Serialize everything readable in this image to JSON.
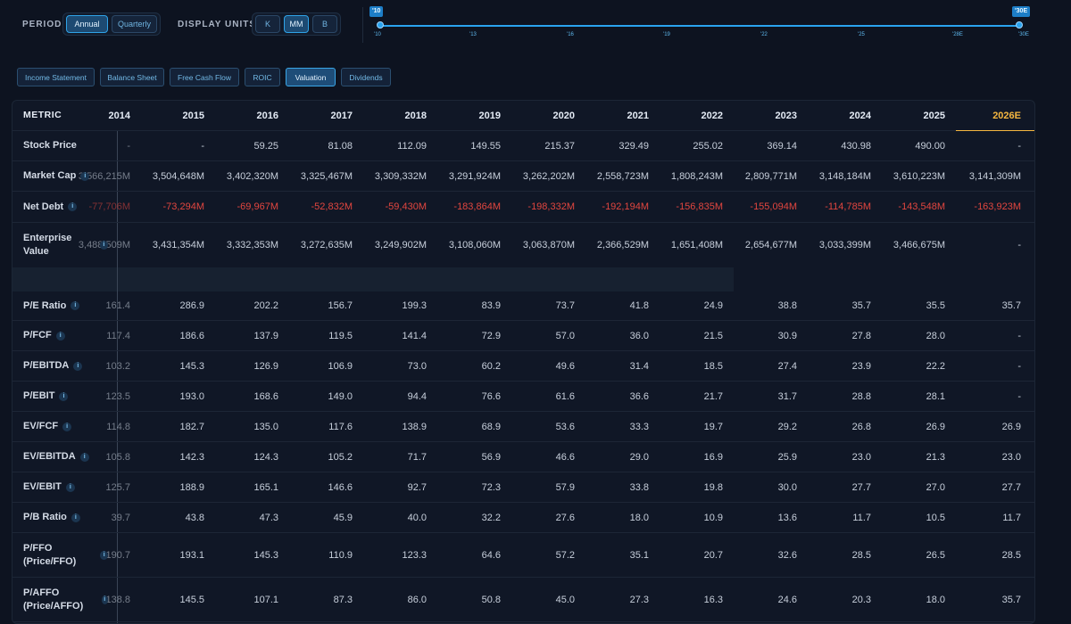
{
  "controls": {
    "period_label": "PERIOD",
    "period_options": [
      "Annual",
      "Quarterly"
    ],
    "display_units_label": "DISPLAY UNITS",
    "unit_options": [
      "K",
      "MM",
      "B"
    ]
  },
  "timeline": {
    "start_flag": "'10",
    "end_flag": "'30E",
    "ticks": [
      "'10",
      "'13",
      "'16",
      "'19",
      "'22",
      "'25",
      "'28E",
      "'30E"
    ]
  },
  "tabs": [
    "Income Statement",
    "Balance Sheet",
    "Free Cash Flow",
    "ROIC",
    "Valuation",
    "Dividends"
  ],
  "table": {
    "metric_header": "METRIC",
    "years": [
      "2014",
      "2015",
      "2016",
      "2017",
      "2018",
      "2019",
      "2020",
      "2021",
      "2022",
      "2023",
      "2024",
      "2025",
      "2026E"
    ],
    "rows": [
      {
        "label": "Stock Price",
        "info": false,
        "values": [
          "-",
          "-",
          "59.25",
          "81.08",
          "112.09",
          "149.55",
          "215.37",
          "329.49",
          "255.02",
          "369.14",
          "430.98",
          "490.00",
          "-"
        ]
      },
      {
        "label": "Market Cap",
        "info": true,
        "values": [
          "3,566,215M",
          "3,504,648M",
          "3,402,320M",
          "3,325,467M",
          "3,309,332M",
          "3,291,924M",
          "3,262,202M",
          "2,558,723M",
          "1,808,243M",
          "2,809,771M",
          "3,148,184M",
          "3,610,223M",
          "3,141,309M"
        ]
      },
      {
        "label": "Net Debt",
        "info": true,
        "neg": true,
        "values": [
          "-77,706M",
          "-73,294M",
          "-69,967M",
          "-52,832M",
          "-59,430M",
          "-183,864M",
          "-198,332M",
          "-192,194M",
          "-156,835M",
          "-155,094M",
          "-114,785M",
          "-143,548M",
          "-163,923M"
        ]
      },
      {
        "label": "Enterprise Value",
        "info": true,
        "values": [
          "3,488,509M",
          "3,431,354M",
          "3,332,353M",
          "3,272,635M",
          "3,249,902M",
          "3,108,060M",
          "3,063,870M",
          "2,366,529M",
          "1,651,408M",
          "2,654,677M",
          "3,033,399M",
          "3,466,675M",
          "-"
        ]
      },
      {
        "label": "P/E Ratio",
        "info": true,
        "values": [
          "161.4",
          "286.9",
          "202.2",
          "156.7",
          "199.3",
          "83.9",
          "73.7",
          "41.8",
          "24.9",
          "38.8",
          "35.7",
          "35.5",
          "35.7"
        ]
      },
      {
        "label": "P/FCF",
        "info": true,
        "values": [
          "117.4",
          "186.6",
          "137.9",
          "119.5",
          "141.4",
          "72.9",
          "57.0",
          "36.0",
          "21.5",
          "30.9",
          "27.8",
          "28.0",
          "-"
        ]
      },
      {
        "label": "P/EBITDA",
        "info": true,
        "values": [
          "103.2",
          "145.3",
          "126.9",
          "106.9",
          "73.0",
          "60.2",
          "49.6",
          "31.4",
          "18.5",
          "27.4",
          "23.9",
          "22.2",
          "-"
        ]
      },
      {
        "label": "P/EBIT",
        "info": true,
        "values": [
          "123.5",
          "193.0",
          "168.6",
          "149.0",
          "94.4",
          "76.6",
          "61.6",
          "36.6",
          "21.7",
          "31.7",
          "28.8",
          "28.1",
          "-"
        ]
      },
      {
        "label": "EV/FCF",
        "info": true,
        "values": [
          "114.8",
          "182.7",
          "135.0",
          "117.6",
          "138.9",
          "68.9",
          "53.6",
          "33.3",
          "19.7",
          "29.2",
          "26.8",
          "26.9",
          "26.9"
        ]
      },
      {
        "label": "EV/EBITDA",
        "info": true,
        "values": [
          "105.8",
          "142.3",
          "124.3",
          "105.2",
          "71.7",
          "56.9",
          "46.6",
          "29.0",
          "16.9",
          "25.9",
          "23.0",
          "21.3",
          "23.0"
        ]
      },
      {
        "label": "EV/EBIT",
        "info": true,
        "values": [
          "125.7",
          "188.9",
          "165.1",
          "146.6",
          "92.7",
          "72.3",
          "57.9",
          "33.8",
          "19.8",
          "30.0",
          "27.7",
          "27.0",
          "27.7"
        ]
      },
      {
        "label": "P/B Ratio",
        "info": true,
        "values": [
          "39.7",
          "43.8",
          "47.3",
          "45.9",
          "40.0",
          "32.2",
          "27.6",
          "18.0",
          "10.9",
          "13.6",
          "11.7",
          "10.5",
          "11.7"
        ]
      },
      {
        "label": "P/FFO (Price/FFO)",
        "info": true,
        "values": [
          "190.7",
          "193.1",
          "145.3",
          "110.9",
          "123.3",
          "64.6",
          "57.2",
          "35.1",
          "20.7",
          "32.6",
          "28.5",
          "26.5",
          "28.5"
        ]
      },
      {
        "label": "P/AFFO (Price/AFFO)",
        "info": true,
        "values": [
          "138.8",
          "145.5",
          "107.1",
          "87.3",
          "86.0",
          "50.8",
          "45.0",
          "27.3",
          "16.3",
          "24.6",
          "20.3",
          "18.0",
          "35.7"
        ]
      }
    ]
  }
}
